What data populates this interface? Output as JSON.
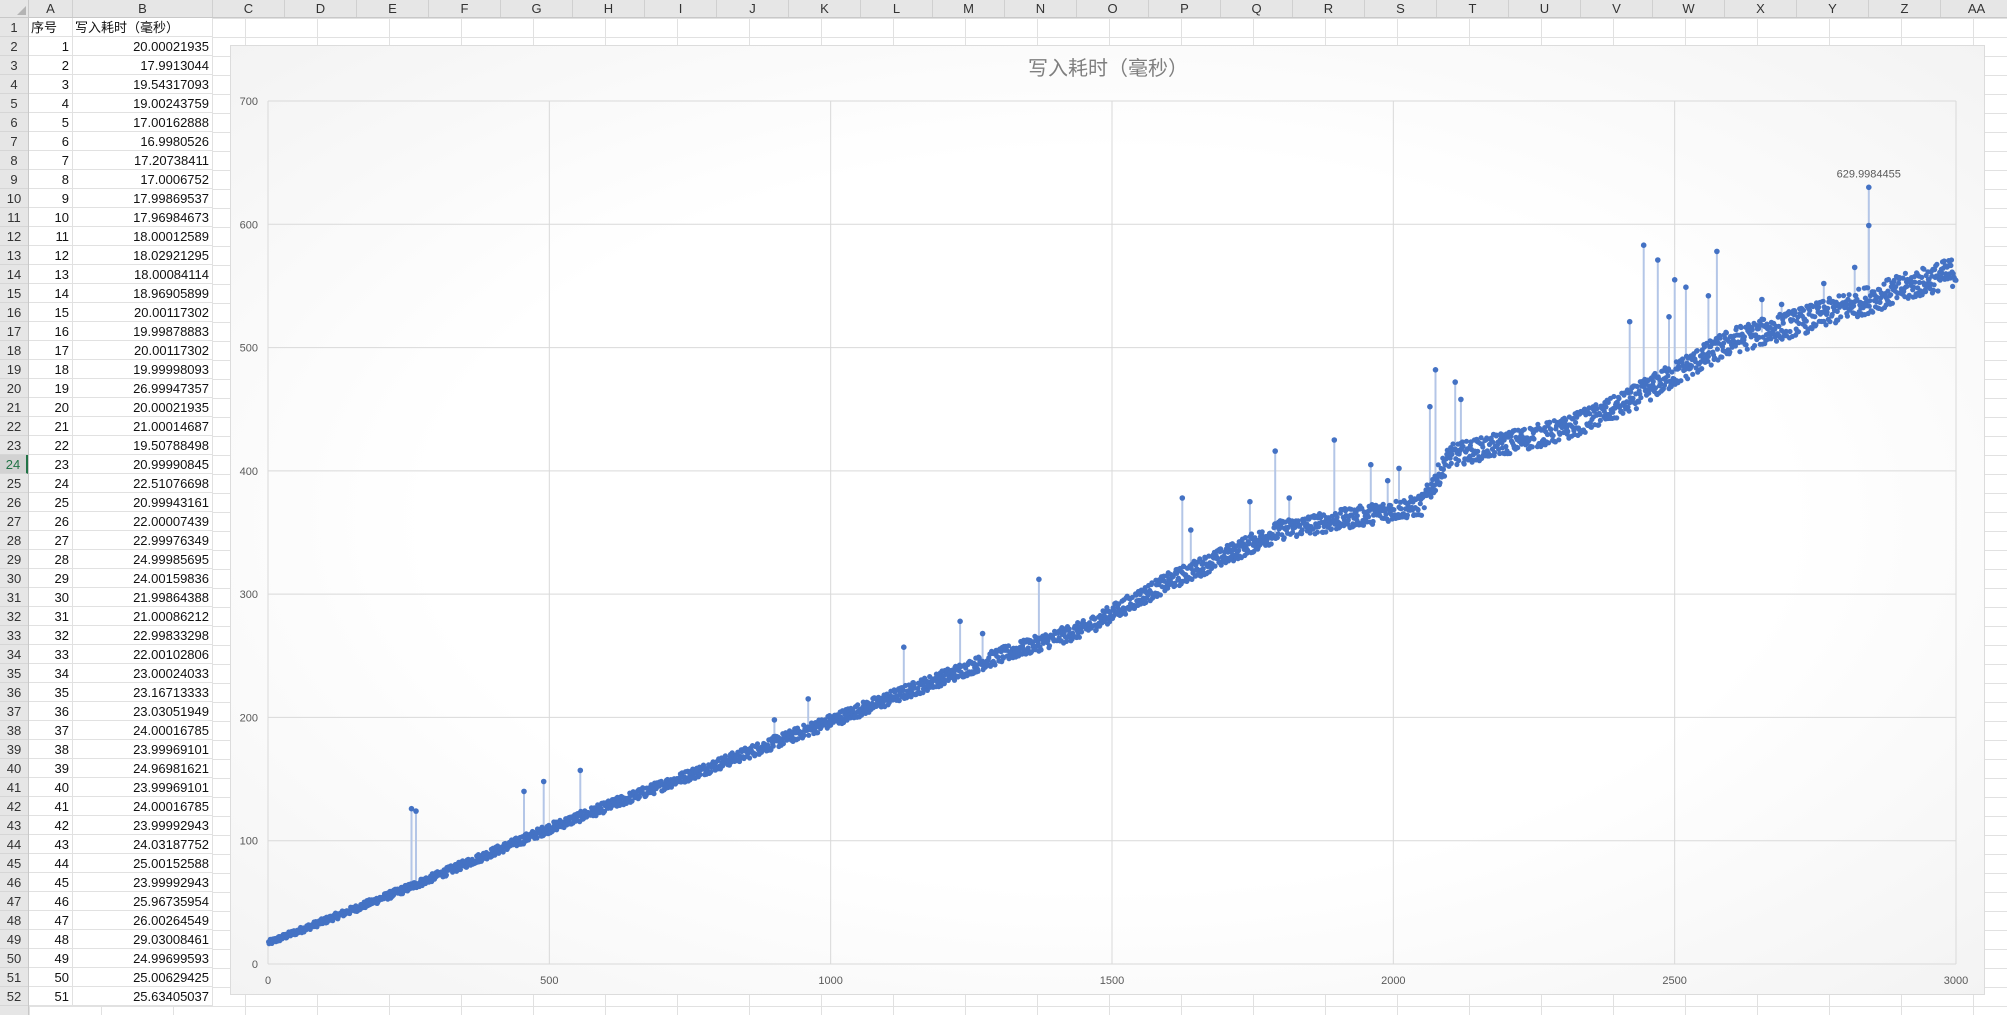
{
  "spreadsheet": {
    "columns": [
      "A",
      "B",
      "C",
      "D",
      "E",
      "F",
      "G",
      "H",
      "I",
      "J",
      "K",
      "L",
      "M",
      "N",
      "O",
      "P",
      "Q",
      "R",
      "S",
      "T",
      "U",
      "V",
      "W",
      "X",
      "Y",
      "Z",
      "AA"
    ],
    "rows": [
      "1",
      "2",
      "3",
      "4",
      "5",
      "6",
      "7",
      "8",
      "9",
      "10",
      "11",
      "12",
      "13",
      "14",
      "15",
      "16",
      "17",
      "18",
      "19",
      "20",
      "21",
      "22",
      "23",
      "24",
      "25",
      "26",
      "27",
      "28",
      "29",
      "30",
      "31",
      "32",
      "33",
      "34",
      "35",
      "36",
      "37",
      "38",
      "39",
      "40",
      "41",
      "42",
      "43",
      "44",
      "45",
      "46",
      "47",
      "48",
      "49",
      "50",
      "51",
      "52"
    ],
    "selected_row": "24",
    "header": {
      "a": "序号",
      "b": "写入耗时（毫秒）"
    },
    "data": [
      [
        "1",
        "20.00021935"
      ],
      [
        "2",
        "17.9913044"
      ],
      [
        "3",
        "19.54317093"
      ],
      [
        "4",
        "19.00243759"
      ],
      [
        "5",
        "17.00162888"
      ],
      [
        "6",
        "16.9980526"
      ],
      [
        "7",
        "17.20738411"
      ],
      [
        "8",
        "17.0006752"
      ],
      [
        "9",
        "17.99869537"
      ],
      [
        "10",
        "17.96984673"
      ],
      [
        "11",
        "18.00012589"
      ],
      [
        "12",
        "18.02921295"
      ],
      [
        "13",
        "18.00084114"
      ],
      [
        "14",
        "18.96905899"
      ],
      [
        "15",
        "20.00117302"
      ],
      [
        "16",
        "19.99878883"
      ],
      [
        "17",
        "20.00117302"
      ],
      [
        "18",
        "19.99998093"
      ],
      [
        "19",
        "26.99947357"
      ],
      [
        "20",
        "20.00021935"
      ],
      [
        "21",
        "21.00014687"
      ],
      [
        "22",
        "19.50788498"
      ],
      [
        "23",
        "20.99990845"
      ],
      [
        "24",
        "22.51076698"
      ],
      [
        "25",
        "20.99943161"
      ],
      [
        "26",
        "22.00007439"
      ],
      [
        "27",
        "22.99976349"
      ],
      [
        "28",
        "24.99985695"
      ],
      [
        "29",
        "24.00159836"
      ],
      [
        "30",
        "21.99864388"
      ],
      [
        "31",
        "21.00086212"
      ],
      [
        "32",
        "22.99833298"
      ],
      [
        "33",
        "22.00102806"
      ],
      [
        "34",
        "23.00024033"
      ],
      [
        "35",
        "23.16713333"
      ],
      [
        "36",
        "23.03051949"
      ],
      [
        "37",
        "24.00016785"
      ],
      [
        "38",
        "23.99969101"
      ],
      [
        "39",
        "24.96981621"
      ],
      [
        "40",
        "23.99969101"
      ],
      [
        "41",
        "24.00016785"
      ],
      [
        "42",
        "23.99992943"
      ],
      [
        "43",
        "24.03187752"
      ],
      [
        "44",
        "25.00152588"
      ],
      [
        "45",
        "23.99992943"
      ],
      [
        "46",
        "25.96735954"
      ],
      [
        "47",
        "26.00264549"
      ],
      [
        "48",
        "29.03008461"
      ],
      [
        "49",
        "24.99699593"
      ],
      [
        "50",
        "25.00629425"
      ],
      [
        "51",
        "25.63405037"
      ]
    ]
  },
  "chart_data": {
    "type": "scatter",
    "title": "写入耗时（毫秒）",
    "xlim": [
      0,
      3000
    ],
    "ylim": [
      0,
      700
    ],
    "x_ticks": [
      "0",
      "500",
      "1000",
      "1500",
      "2000",
      "2500",
      "3000"
    ],
    "y_ticks": [
      "0",
      "100",
      "200",
      "300",
      "400",
      "500",
      "600",
      "700"
    ],
    "grid": true,
    "legend": "none",
    "marker_color": "#4472c4",
    "drop_line_color": "#b4c6e7",
    "data_label": {
      "x": 2845,
      "y": 629.9984455,
      "text": "629.9984455"
    },
    "trend_keypoints": [
      [
        0,
        17
      ],
      [
        250,
        62
      ],
      [
        500,
        110
      ],
      [
        1000,
        197
      ],
      [
        1300,
        250
      ],
      [
        1450,
        272
      ],
      [
        1600,
        310
      ],
      [
        1800,
        352
      ],
      [
        2050,
        372
      ],
      [
        2100,
        412
      ],
      [
        2300,
        433
      ],
      [
        2400,
        452
      ],
      [
        2600,
        505
      ],
      [
        2750,
        525
      ],
      [
        3000,
        562
      ]
    ],
    "spikes": [
      [
        255,
        126
      ],
      [
        263,
        124
      ],
      [
        455,
        140
      ],
      [
        490,
        148
      ],
      [
        555,
        157
      ],
      [
        900,
        198
      ],
      [
        960,
        215
      ],
      [
        1130,
        257
      ],
      [
        1230,
        278
      ],
      [
        1270,
        268
      ],
      [
        1370,
        312
      ],
      [
        1625,
        378
      ],
      [
        1640,
        352
      ],
      [
        1745,
        375
      ],
      [
        1790,
        416
      ],
      [
        1815,
        378
      ],
      [
        1895,
        425
      ],
      [
        1960,
        405
      ],
      [
        1990,
        392
      ],
      [
        2010,
        402
      ],
      [
        2065,
        452
      ],
      [
        2075,
        482
      ],
      [
        2110,
        472
      ],
      [
        2120,
        458
      ],
      [
        2420,
        521
      ],
      [
        2445,
        583
      ],
      [
        2470,
        571
      ],
      [
        2490,
        525
      ],
      [
        2500,
        555
      ],
      [
        2520,
        549
      ],
      [
        2560,
        542
      ],
      [
        2575,
        578
      ],
      [
        2655,
        539
      ],
      [
        2690,
        535
      ],
      [
        2765,
        552
      ],
      [
        2820,
        565
      ],
      [
        2845,
        630
      ],
      [
        2845,
        599
      ]
    ],
    "point_count": 3000
  }
}
